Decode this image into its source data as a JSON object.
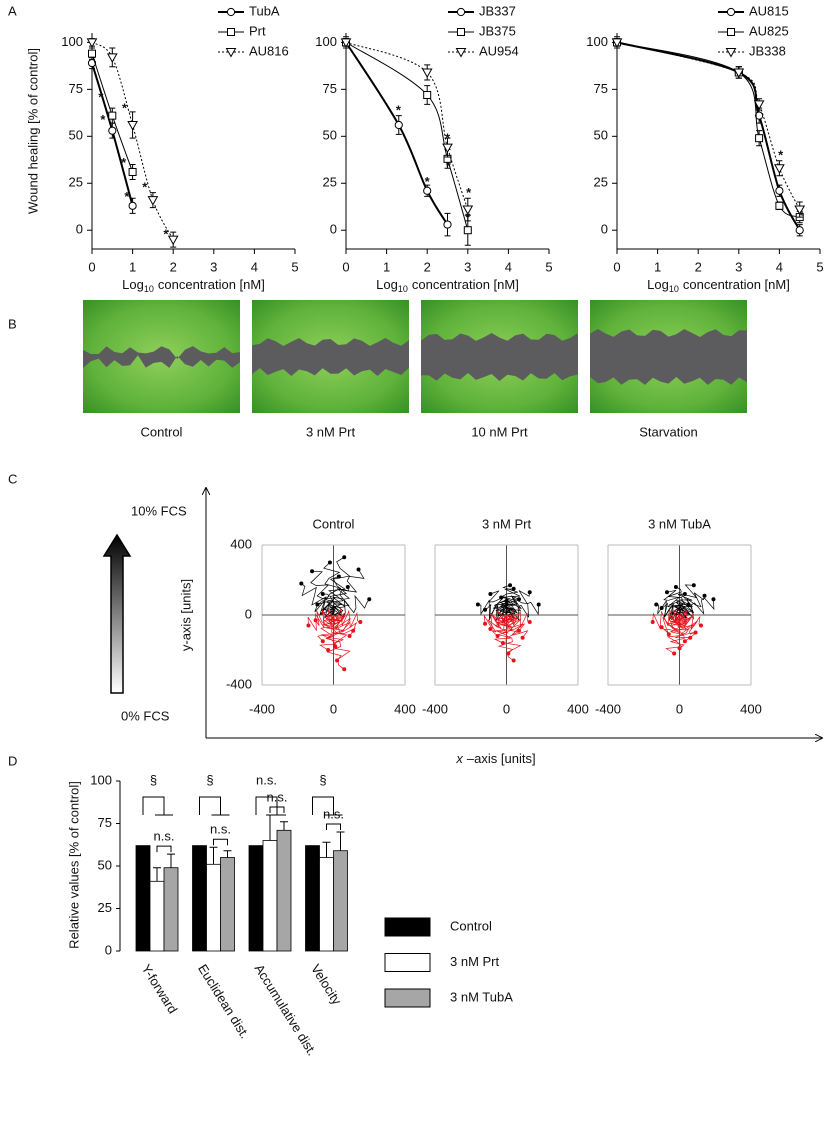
{
  "panel_labels": [
    "A",
    "B",
    "C",
    "D"
  ],
  "panel_b": {
    "captions": [
      "Control",
      "3 nM Prt",
      "10 nM Prt",
      "Starvation"
    ]
  },
  "panel_c": {
    "gradient_top": "10% FCS",
    "gradient_bottom": "0% FCS",
    "y_label": "y-axis [units]",
    "x_label": {
      "italic": "x",
      "rest": "–axis [units]"
    }
  },
  "chart_data": [
    {
      "type": "line",
      "y_label": "Wound healing [% of control]",
      "x_label": {
        "base": "Log",
        "subscript": "10",
        "rest": "concentration [nM]"
      },
      "xlim": [
        0,
        5
      ],
      "xticks": [
        0,
        1,
        2,
        3,
        4,
        5
      ],
      "ylim": [
        -10,
        105
      ],
      "yticks": [
        0,
        25,
        50,
        75,
        100
      ],
      "series": [
        {
          "name": "TubA",
          "color": "#000000",
          "marker": "circle",
          "line_style": "solid",
          "line_width": 2,
          "x": [
            0,
            0.5,
            1
          ],
          "values": [
            89,
            53,
            13
          ],
          "errors": [
            3,
            4,
            4
          ]
        },
        {
          "name": "Prt",
          "color": "#000000",
          "marker": "square",
          "line_style": "solid",
          "line_width": 1,
          "x": [
            0,
            0.5,
            1
          ],
          "values": [
            94,
            61,
            31
          ],
          "errors": [
            3,
            4,
            4
          ]
        },
        {
          "name": "AU816",
          "color": "#000000",
          "marker": "triangle-down",
          "line_style": "dotted",
          "line_width": 1,
          "x": [
            0,
            0.5,
            1,
            1.5,
            2
          ],
          "values": [
            100,
            92,
            56,
            16,
            -5
          ],
          "errors": [
            2,
            5,
            7,
            4,
            4
          ]
        }
      ],
      "annotations": [
        {
          "text": "*",
          "x": 0.22,
          "y": 72
        },
        {
          "text": "*",
          "x": 0.27,
          "y": 60
        },
        {
          "text": "*",
          "x": 0.8,
          "y": 66
        },
        {
          "text": "*",
          "x": 0.78,
          "y": 37
        },
        {
          "text": "*",
          "x": 0.86,
          "y": 19
        },
        {
          "text": "*",
          "x": 1.3,
          "y": 24
        },
        {
          "text": "*",
          "x": 1.82,
          "y": -1
        }
      ]
    },
    {
      "type": "line",
      "x_label": {
        "base": "Log",
        "subscript": "10",
        "rest": "concentration [nM]"
      },
      "xlim": [
        0,
        5
      ],
      "xticks": [
        0,
        1,
        2,
        3,
        4,
        5
      ],
      "ylim": [
        -10,
        105
      ],
      "yticks": [
        0,
        25,
        50,
        75,
        100
      ],
      "series": [
        {
          "name": "JB337",
          "color": "#000000",
          "marker": "circle",
          "line_style": "solid",
          "line_width": 2,
          "x": [
            0,
            1.3,
            2,
            2.5
          ],
          "values": [
            100,
            56,
            21,
            3
          ],
          "errors": [
            3,
            5,
            3,
            6
          ]
        },
        {
          "name": "JB375",
          "color": "#000000",
          "marker": "square",
          "line_style": "solid",
          "line_width": 1,
          "x": [
            0,
            2,
            2.5,
            3
          ],
          "values": [
            100,
            72,
            38,
            0
          ],
          "errors": [
            2,
            5,
            5,
            8
          ]
        },
        {
          "name": "AU954",
          "color": "#000000",
          "marker": "triangle-down",
          "line_style": "dotted",
          "line_width": 1,
          "x": [
            0,
            2,
            2.5,
            3
          ],
          "values": [
            100,
            84,
            44,
            11
          ],
          "errors": [
            2,
            4,
            5,
            6
          ]
        }
      ],
      "annotations": [
        {
          "text": "*",
          "x": 1.29,
          "y": 65
        },
        {
          "text": "*",
          "x": 2,
          "y": 27
        },
        {
          "text": "*",
          "x": 2.5,
          "y": 50
        },
        {
          "text": "*",
          "x": 2.52,
          "y": 35
        },
        {
          "text": "*",
          "x": 3.02,
          "y": 21
        },
        {
          "text": "*",
          "x": 3,
          "y": 8
        }
      ]
    },
    {
      "type": "line",
      "x_label": {
        "base": "Log",
        "subscript": "10",
        "rest": "concentration [nM]"
      },
      "xlim": [
        0,
        5
      ],
      "xticks": [
        0,
        1,
        2,
        3,
        4,
        5
      ],
      "ylim": [
        -10,
        105
      ],
      "yticks": [
        0,
        25,
        50,
        75,
        100
      ],
      "series": [
        {
          "name": "AU815",
          "color": "#000000",
          "marker": "circle",
          "line_style": "solid",
          "line_width": 2,
          "x": [
            0,
            3,
            3.5,
            4,
            4.5
          ],
          "values": [
            100,
            84,
            61,
            21,
            0
          ],
          "errors": [
            3,
            3,
            4,
            3,
            3
          ]
        },
        {
          "name": "AU825",
          "color": "#000000",
          "marker": "square",
          "line_style": "solid",
          "line_width": 1,
          "x": [
            0,
            3,
            3.5,
            4,
            4.5
          ],
          "values": [
            100,
            84,
            49,
            13,
            7
          ],
          "errors": [
            2,
            3,
            4,
            2,
            3
          ]
        },
        {
          "name": "JB338",
          "color": "#000000",
          "marker": "triangle-down",
          "line_style": "dotted",
          "line_width": 1,
          "x": [
            0,
            3,
            3.5,
            4,
            4.5
          ],
          "values": [
            100,
            84,
            67,
            33,
            11
          ],
          "errors": [
            2,
            3,
            3,
            4,
            4
          ]
        }
      ],
      "annotations": [
        {
          "text": "*",
          "x": 4.03,
          "y": 41
        },
        {
          "text": "*",
          "x": 4.53,
          "y": 9
        }
      ]
    },
    {
      "type": "tracks",
      "title": "Control",
      "xlim": [
        -400,
        400
      ],
      "xticks": [
        -400,
        0,
        400
      ],
      "ylim": [
        -400,
        400
      ],
      "yticks": [
        -400,
        0,
        400
      ],
      "ytick_labels": true,
      "series": [
        {
          "color": "#000000",
          "x": [
            -180,
            -120,
            -60,
            -20,
            30,
            80,
            140,
            200,
            -90,
            60
          ],
          "y": [
            180,
            250,
            120,
            300,
            220,
            160,
            260,
            90,
            60,
            330
          ]
        },
        {
          "color": "#e8101a",
          "x": [
            -140,
            -60,
            20,
            90,
            150,
            -30,
            60,
            -100,
            110,
            10
          ],
          "y": [
            -60,
            -150,
            -260,
            -120,
            -40,
            -200,
            -310,
            -30,
            -90,
            -180
          ]
        }
      ]
    },
    {
      "type": "tracks",
      "title": "3 nM Prt",
      "xlim": [
        -400,
        400
      ],
      "xticks": [
        -400,
        0,
        400
      ],
      "ylim": [
        -400,
        400
      ],
      "yticks": [
        -400,
        0,
        400
      ],
      "ytick_labels": false,
      "series": [
        {
          "color": "#000000",
          "x": [
            -160,
            -90,
            -30,
            20,
            70,
            130,
            180,
            -120,
            40,
            0
          ],
          "y": [
            60,
            120,
            100,
            170,
            90,
            130,
            60,
            30,
            150,
            80
          ]
        },
        {
          "color": "#e8101a",
          "x": [
            -120,
            -50,
            10,
            70,
            130,
            -20,
            40,
            -90,
            90
          ],
          "y": [
            -50,
            -120,
            -220,
            -90,
            -40,
            -160,
            -260,
            -80,
            -130
          ]
        }
      ]
    },
    {
      "type": "tracks",
      "title": "3 nM TubA",
      "xlim": [
        -400,
        400
      ],
      "xticks": [
        -400,
        0,
        400
      ],
      "ylim": [
        -400,
        400
      ],
      "yticks": [
        -400,
        0,
        400
      ],
      "ytick_labels": false,
      "series": [
        {
          "color": "#000000",
          "x": [
            -130,
            -70,
            -20,
            30,
            80,
            140,
            190,
            -100,
            50
          ],
          "y": [
            60,
            130,
            160,
            120,
            170,
            110,
            90,
            40,
            60
          ]
        },
        {
          "color": "#e8101a",
          "x": [
            -150,
            -60,
            0,
            60,
            120,
            -30,
            90,
            30,
            -100
          ],
          "y": [
            -40,
            -110,
            -190,
            -130,
            -60,
            -220,
            -100,
            -150,
            -70
          ]
        }
      ]
    },
    {
      "type": "bar",
      "y_label": "Relative values  [% of control]",
      "categories": [
        "Y-forward",
        "Euclidean dist.",
        "Accumulative dist.",
        "Velocity"
      ],
      "ylim": [
        0,
        100
      ],
      "yticks": [
        0,
        25,
        50,
        75,
        100
      ],
      "series": [
        {
          "name": "Control",
          "color": "#000000",
          "values": [
            62,
            62,
            62,
            62
          ]
        },
        {
          "name": "3 nM Prt",
          "color": "#ffffff",
          "values": [
            41,
            51,
            65,
            55
          ],
          "errors": [
            8,
            10,
            15,
            9
          ]
        },
        {
          "name": "3 nM TubA",
          "color": "#a6a6a6",
          "values": [
            49,
            55,
            71,
            59
          ],
          "errors": [
            8,
            4,
            5,
            11
          ]
        }
      ],
      "group_annotations": [
        "§",
        "§",
        "n.s.",
        "§"
      ],
      "pair_annotations": [
        "n.s.",
        "n.s.",
        "n.s.",
        "n.s."
      ]
    }
  ]
}
